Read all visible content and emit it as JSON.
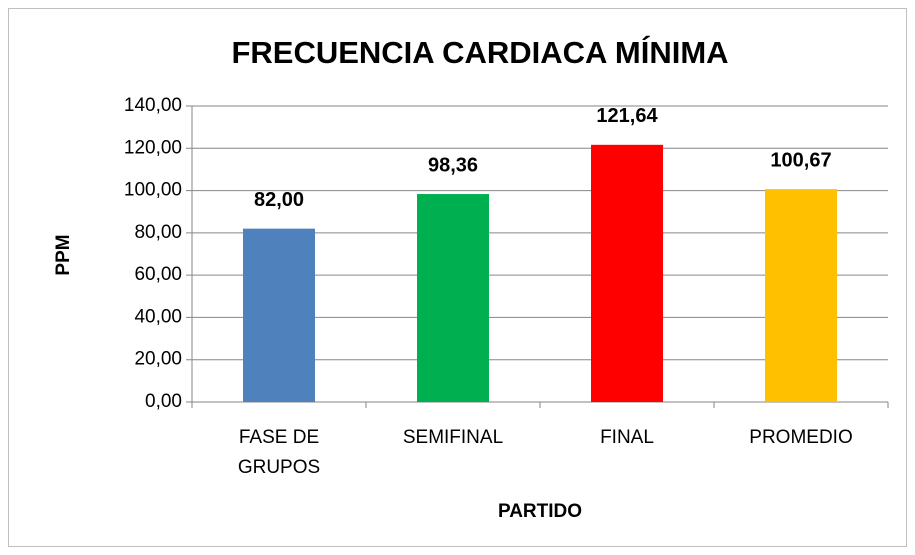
{
  "chart_data": {
    "type": "bar",
    "title": "FRECUENCIA CARDIACA MÍNIMA",
    "x_label": "PARTIDO",
    "y_label": "PPM",
    "categories": [
      "FASE DE GRUPOS",
      "SEMIFINAL",
      "FINAL",
      "PROMEDIO"
    ],
    "values": [
      82.0,
      98.36,
      121.64,
      100.67
    ],
    "value_labels": [
      "82,00",
      "98,36",
      "121,64",
      "100,67"
    ],
    "colors": [
      "#4f81bd",
      "#00b050",
      "#ff0000",
      "#ffc000"
    ],
    "ylim": [
      0,
      140
    ],
    "yticks": [
      {
        "value": 0,
        "label": "0,00"
      },
      {
        "value": 20,
        "label": "20,00"
      },
      {
        "value": 40,
        "label": "40,00"
      },
      {
        "value": 60,
        "label": "60,00"
      },
      {
        "value": 80,
        "label": "80,00"
      },
      {
        "value": 100,
        "label": "100,00"
      },
      {
        "value": 120,
        "label": "120,00"
      },
      {
        "value": 140,
        "label": "140,00"
      }
    ],
    "grid": true
  }
}
